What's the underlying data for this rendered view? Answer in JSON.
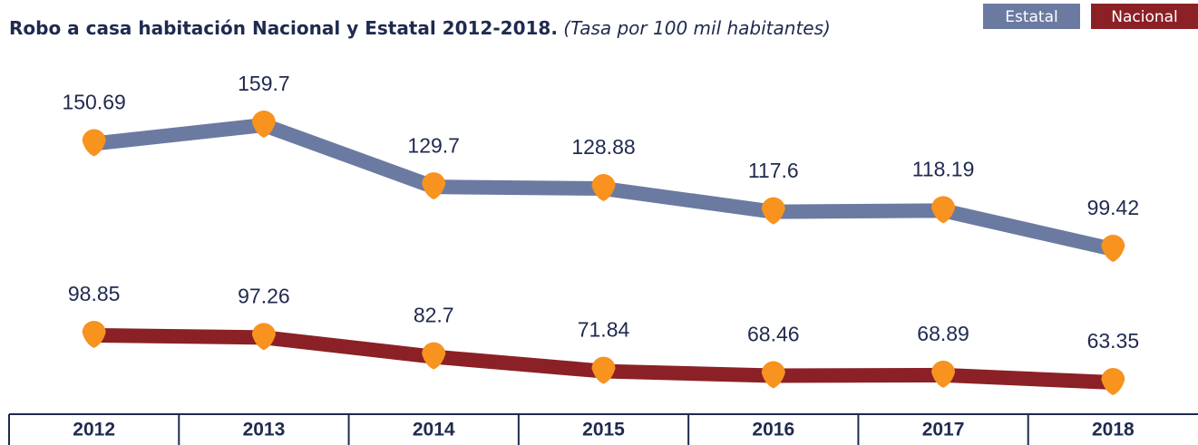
{
  "chart_data": {
    "type": "line",
    "title": "Robo a casa habitación Nacional y Estatal 2012-2018.",
    "subtitle": "(Tasa por 100 mil habitantes)",
    "categories": [
      "2012",
      "2013",
      "2014",
      "2015",
      "2016",
      "2017",
      "2018"
    ],
    "marker_color": "#f7931e",
    "series": [
      {
        "name": "Estatal",
        "color": "#6b7aa1",
        "values": [
          150.69,
          159.7,
          129.7,
          128.88,
          117.6,
          118.19,
          99.42
        ]
      },
      {
        "name": "Nacional",
        "color": "#8b2126",
        "values": [
          98.85,
          97.26,
          82.7,
          71.84,
          68.46,
          68.89,
          63.35
        ]
      }
    ]
  }
}
